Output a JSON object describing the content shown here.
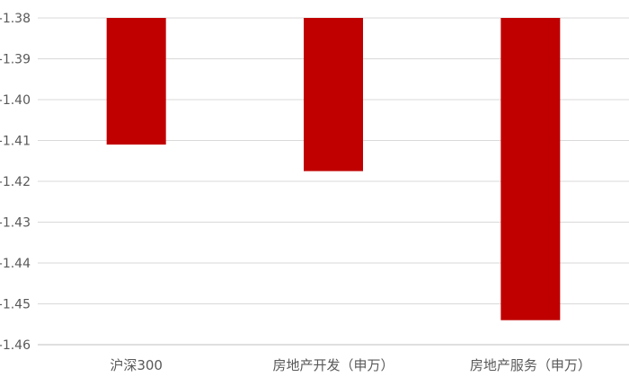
{
  "chart_data": {
    "type": "bar",
    "categories": [
      "沪深300",
      "房地产开发（申万）",
      "房地产服务（申万）"
    ],
    "values": [
      -1.411,
      -1.4175,
      -1.454
    ],
    "ylim": [
      -1.46,
      -1.38
    ],
    "yticks": [
      -1.38,
      -1.39,
      -1.4,
      -1.41,
      -1.42,
      -1.43,
      -1.44,
      -1.45,
      -1.46
    ],
    "ytick_labels": [
      "-1.38",
      "-1.39",
      "-1.40",
      "-1.41",
      "-1.42",
      "-1.43",
      "-1.44",
      "-1.45",
      "-1.46"
    ],
    "grid": true,
    "bar_color": "#C00000",
    "grid_color": "#D9D9D9",
    "axis_color": "#BFBFBF",
    "text_color": "#595959"
  }
}
